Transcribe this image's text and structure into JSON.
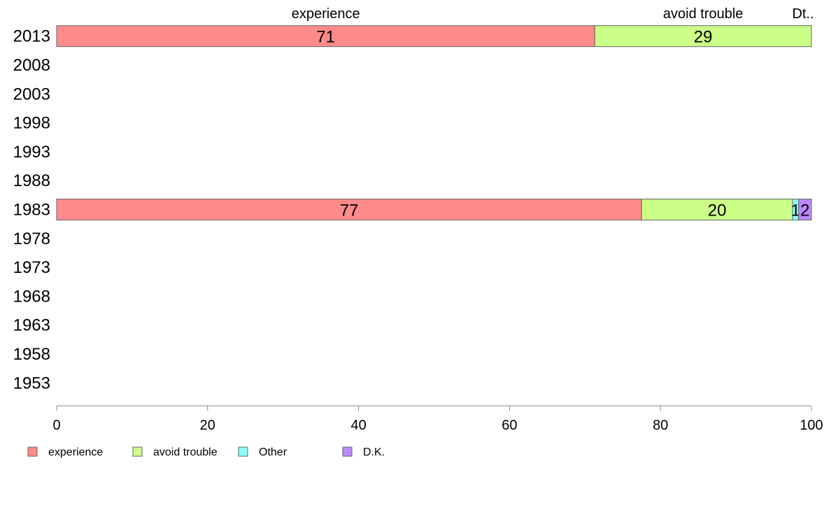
{
  "chart_data": {
    "type": "bar",
    "orientation": "horizontal",
    "stacked": true,
    "categories": [
      "2013",
      "2008",
      "2003",
      "1998",
      "1993",
      "1988",
      "1983",
      "1978",
      "1973",
      "1968",
      "1963",
      "1958",
      "1953"
    ],
    "series": [
      {
        "name": "experience",
        "color": "#ff8a8a",
        "values": [
          71.3,
          null,
          null,
          null,
          null,
          null,
          77.5,
          null,
          null,
          null,
          null,
          null,
          null
        ]
      },
      {
        "name": "avoid trouble",
        "color": "#ccff88",
        "values": [
          28.7,
          null,
          null,
          null,
          null,
          null,
          20.0,
          null,
          null,
          null,
          null,
          null,
          null
        ]
      },
      {
        "name": "Other",
        "color": "#88ffff",
        "values": [
          0,
          null,
          null,
          null,
          null,
          null,
          0.8,
          null,
          null,
          null,
          null,
          null,
          null
        ]
      },
      {
        "name": "D.K.",
        "color": "#bb88ff",
        "values": [
          0,
          null,
          null,
          null,
          null,
          null,
          1.7,
          null,
          null,
          null,
          null,
          null,
          null
        ]
      }
    ],
    "data_labels": {
      "2013": [
        "71",
        "29",
        "",
        ""
      ],
      "1983": [
        "77",
        "20",
        "1",
        "2"
      ]
    },
    "top_labels": [
      "experience",
      "avoid trouble",
      "Dt.."
    ],
    "x_ticks": [
      "0",
      "20",
      "40",
      "60",
      "80",
      "100"
    ],
    "xlim": [
      0,
      100
    ],
    "title": "",
    "xlabel": "",
    "ylabel": "",
    "grid": false,
    "legend_position": "bottom-left"
  }
}
